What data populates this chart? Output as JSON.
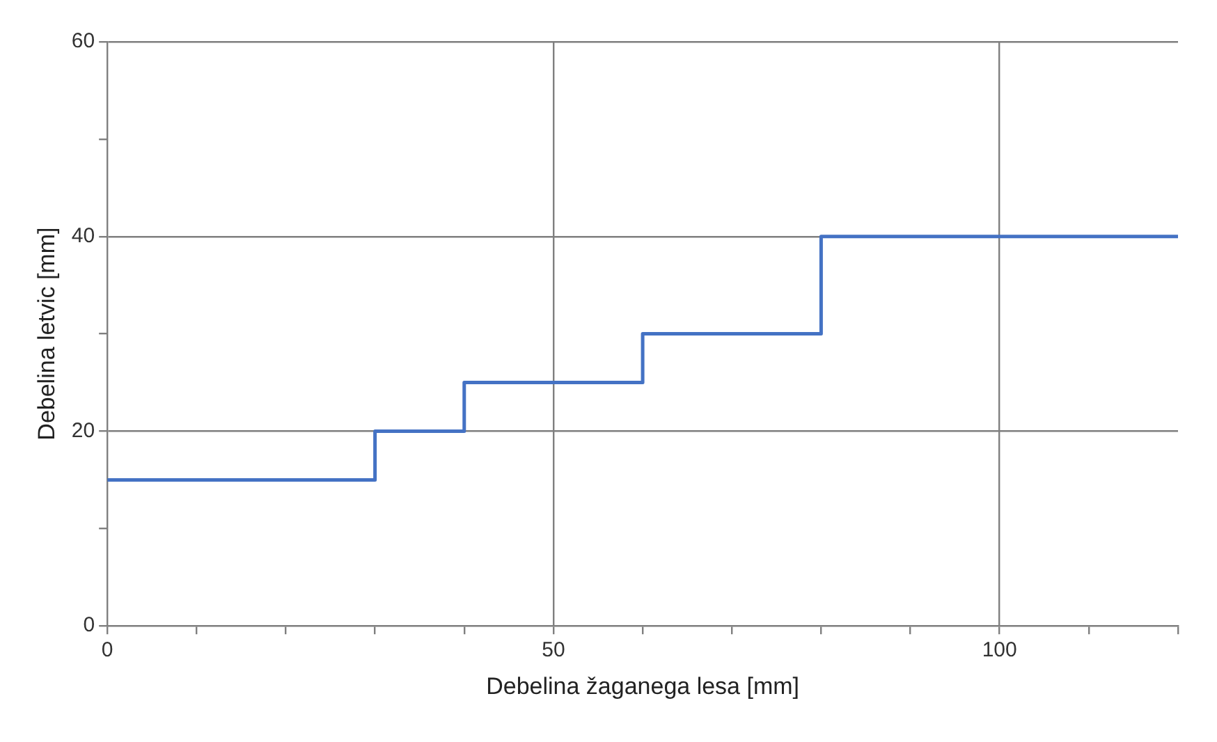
{
  "chart_data": {
    "type": "step",
    "xlabel": "Debelina žaganega lesa [mm]",
    "ylabel": "Debelina letvic [mm]",
    "x": [
      0,
      30,
      40,
      60,
      80,
      120
    ],
    "series": [
      {
        "color": "#4472c4",
        "values": [
          15,
          20,
          25,
          30,
          40,
          40
        ]
      }
    ],
    "xlim": [
      0,
      120
    ],
    "ylim": [
      0,
      60
    ],
    "xticks": [
      0,
      {
        "value": 10,
        "label": null
      },
      {
        "value": 20,
        "label": null
      },
      {
        "value": 30,
        "label": null
      },
      {
        "value": 40,
        "label": null
      },
      50,
      {
        "value": 60,
        "label": null
      },
      {
        "value": 70,
        "label": null
      },
      {
        "value": 80,
        "label": null
      },
      {
        "value": 90,
        "label": null
      },
      100,
      {
        "value": 110,
        "label": null
      },
      {
        "value": 120,
        "label": null
      }
    ],
    "yticks": [
      0,
      {
        "value": 10,
        "label": null
      },
      20,
      {
        "value": 30,
        "label": null
      },
      40,
      {
        "value": 50,
        "label": null
      },
      60
    ],
    "grid": true,
    "legend": false,
    "marker": "none",
    "line_style": "solid"
  }
}
